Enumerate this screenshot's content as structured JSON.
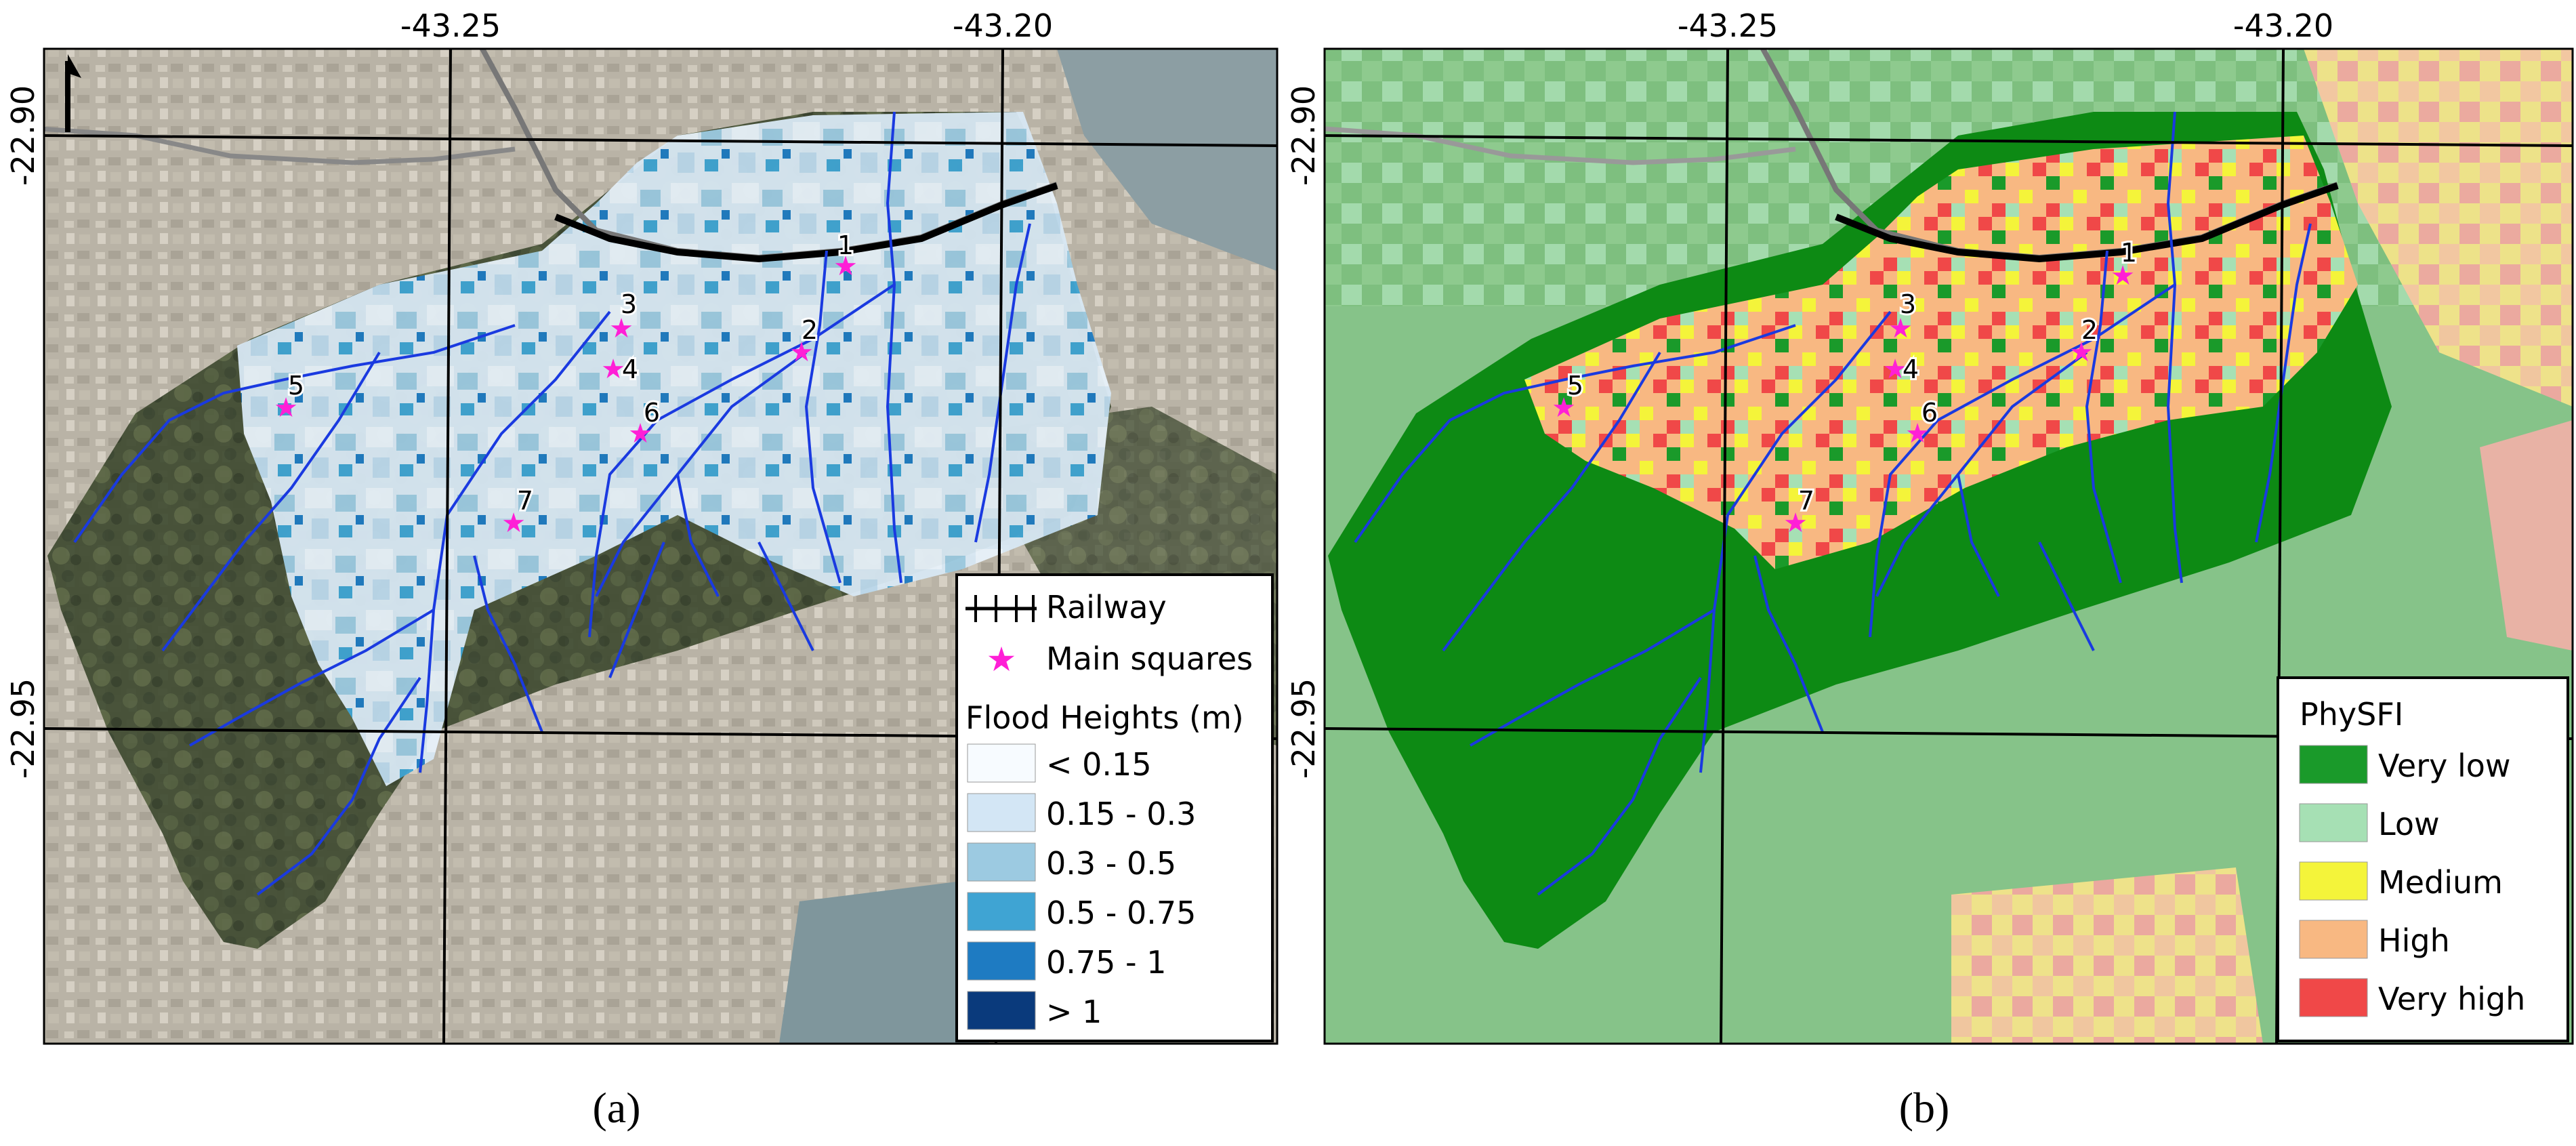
{
  "figure": {
    "panels": [
      {
        "id": "a",
        "caption": "(a)",
        "top_labels": [
          "-43.25",
          "-43.20"
        ],
        "left_labels": [
          "-22.90",
          "-22.95"
        ],
        "squares": [
          "1",
          "2",
          "3",
          "4",
          "5",
          "6",
          "7"
        ],
        "legend": {
          "railway_label": "Railway",
          "squares_label": "Main squares",
          "title": "Flood Heights (m)",
          "classes": [
            {
              "label": "< 0.15",
              "color": "#f7fbff"
            },
            {
              "label": "0.15 - 0.3",
              "color": "#d3e6f5"
            },
            {
              "label": "0.3 - 0.5",
              "color": "#9ccae1"
            },
            {
              "label": "0.5 - 0.75",
              "color": "#3fa4d3"
            },
            {
              "label": "0.75 - 1",
              "color": "#1e7bc2"
            },
            {
              "label": "> 1",
              "color": "#0a3a7c"
            }
          ]
        }
      },
      {
        "id": "b",
        "caption": "(b)",
        "top_labels": [
          "-43.25",
          "-43.20"
        ],
        "left_labels": [
          "-22.90",
          "-22.95"
        ],
        "squares": [
          "1",
          "2",
          "3",
          "4",
          "5",
          "6",
          "7"
        ],
        "legend": {
          "title": "PhySFI",
          "classes": [
            {
              "label": "Very low",
              "color": "#1a9a2a"
            },
            {
              "label": "Low",
              "color": "#a6e0b4"
            },
            {
              "label": "Medium",
              "color": "#f4f43a"
            },
            {
              "label": "High",
              "color": "#f8b882"
            },
            {
              "label": "Very high",
              "color": "#f04848"
            }
          ]
        }
      }
    ],
    "colors": {
      "rivers": "#1a3ae0",
      "star": "#ff1fd6",
      "railway": "#000000",
      "grid": "#000000"
    }
  }
}
